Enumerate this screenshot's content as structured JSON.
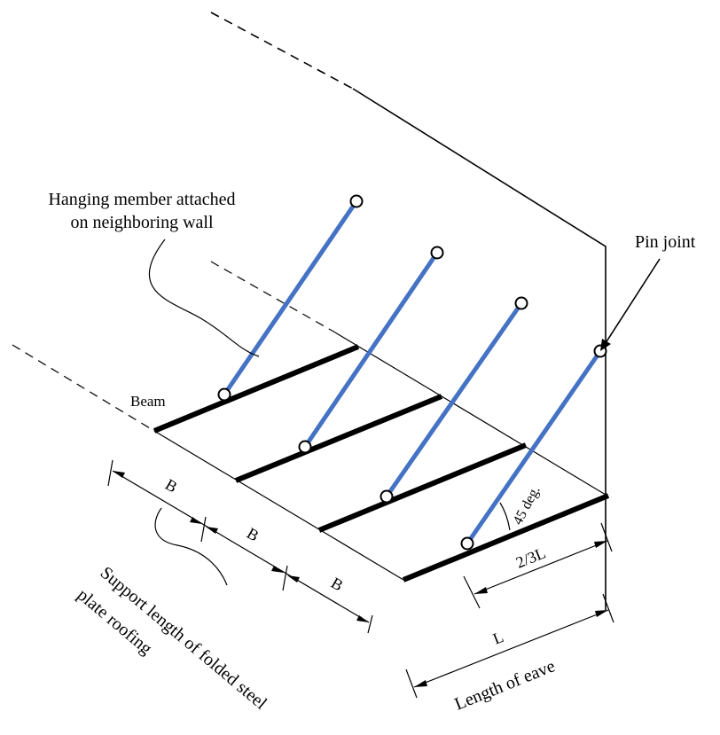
{
  "labels": {
    "hanging_line1": "Hanging member attached",
    "hanging_line2": "on neighboring wall",
    "pin_joint": "Pin joint",
    "beam": "Beam",
    "b1": "B",
    "b2": "B",
    "b3": "B",
    "angle": "45 deg.",
    "two_thirds": "2/3L",
    "l": "L",
    "length_of_eave": "Length of eave",
    "support_line1": "Support length of folded steel",
    "support_line2": "plate roofing"
  },
  "colors": {
    "hanging_member": "#4472C4",
    "beam": "#000000",
    "line": "#000000"
  }
}
